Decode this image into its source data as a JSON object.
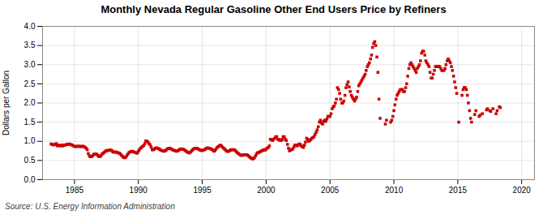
{
  "chart_data": {
    "type": "scatter",
    "title": "Monthly Nevada Regular Gasoline Other End Users Price by Refiners",
    "ylabel": "Dollars per Gallon",
    "caption": "Source: U.S. Energy Information Administration",
    "color": "#cc0000",
    "marker": "square",
    "grid": true,
    "xlim": [
      1982.5,
      2021
    ],
    "ylim": [
      0.0,
      4.0
    ],
    "xticks": [
      1985,
      1990,
      1995,
      2000,
      2005,
      2010,
      2015,
      2020
    ],
    "yticks": [
      {
        "value": 0,
        "label": "0.0"
      },
      0.5,
      {
        "value": 1,
        "label": "1.0"
      },
      1.5,
      {
        "value": 2,
        "label": "2.0"
      },
      2.5,
      {
        "value": 3,
        "label": "3.0"
      },
      3.5,
      {
        "value": 4,
        "label": "4.0"
      }
    ],
    "x": [
      1983.17,
      1983.25,
      1983.33,
      1983.42,
      1983.5,
      1983.58,
      1983.67,
      1983.75,
      1983.83,
      1983.92,
      1984.0,
      1984.08,
      1984.17,
      1984.25,
      1984.33,
      1984.42,
      1984.5,
      1984.58,
      1984.67,
      1984.75,
      1984.83,
      1984.92,
      1985.0,
      1985.08,
      1985.17,
      1985.25,
      1985.33,
      1985.42,
      1985.5,
      1985.58,
      1985.67,
      1985.75,
      1985.83,
      1985.92,
      1986.0,
      1986.08,
      1986.17,
      1986.25,
      1986.33,
      1986.42,
      1986.5,
      1986.58,
      1986.67,
      1986.75,
      1986.83,
      1986.92,
      1987.0,
      1987.08,
      1987.17,
      1987.25,
      1987.33,
      1987.42,
      1987.5,
      1987.58,
      1987.67,
      1987.75,
      1987.83,
      1987.92,
      1988.0,
      1988.08,
      1988.17,
      1988.25,
      1988.33,
      1988.42,
      1988.5,
      1988.58,
      1988.67,
      1988.75,
      1988.83,
      1988.92,
      1989.0,
      1989.08,
      1989.17,
      1989.25,
      1989.33,
      1989.42,
      1989.5,
      1989.58,
      1989.67,
      1989.75,
      1989.83,
      1989.92,
      1990.0,
      1990.08,
      1990.17,
      1990.25,
      1990.33,
      1990.42,
      1990.5,
      1990.58,
      1990.67,
      1990.75,
      1990.83,
      1990.92,
      1991.0,
      1991.08,
      1991.17,
      1991.25,
      1991.33,
      1991.42,
      1991.5,
      1991.58,
      1991.67,
      1991.75,
      1991.83,
      1991.92,
      1992.0,
      1992.08,
      1992.17,
      1992.25,
      1992.33,
      1992.42,
      1992.5,
      1992.58,
      1992.67,
      1992.75,
      1992.83,
      1992.92,
      1993.0,
      1993.08,
      1993.17,
      1993.25,
      1993.33,
      1993.42,
      1993.5,
      1993.58,
      1993.67,
      1993.75,
      1993.83,
      1993.92,
      1994.0,
      1994.08,
      1994.17,
      1994.25,
      1994.33,
      1994.42,
      1994.5,
      1994.58,
      1994.67,
      1994.75,
      1994.83,
      1994.92,
      1995.0,
      1995.08,
      1995.17,
      1995.25,
      1995.33,
      1995.42,
      1995.5,
      1995.58,
      1995.67,
      1995.75,
      1995.83,
      1995.92,
      1996.0,
      1996.08,
      1996.17,
      1996.25,
      1996.33,
      1996.42,
      1996.5,
      1996.58,
      1996.67,
      1996.75,
      1996.83,
      1996.92,
      1997.0,
      1997.08,
      1997.17,
      1997.25,
      1997.33,
      1997.42,
      1997.5,
      1997.58,
      1997.67,
      1997.75,
      1997.83,
      1997.92,
      1998.0,
      1998.08,
      1998.17,
      1998.25,
      1998.33,
      1998.42,
      1998.5,
      1998.58,
      1998.67,
      1998.75,
      1998.83,
      1998.92,
      1999.0,
      1999.08,
      1999.17,
      1999.25,
      1999.33,
      1999.42,
      1999.5,
      1999.58,
      1999.67,
      1999.75,
      1999.83,
      1999.92,
      2000.0,
      2000.08,
      2000.17,
      2000.25,
      2000.33,
      2000.42,
      2000.5,
      2000.58,
      2000.67,
      2000.75,
      2000.83,
      2000.92,
      2001.0,
      2001.08,
      2001.17,
      2001.25,
      2001.33,
      2001.42,
      2001.5,
      2001.58,
      2001.67,
      2001.75,
      2001.83,
      2001.92,
      2002.0,
      2002.08,
      2002.17,
      2002.25,
      2002.33,
      2002.42,
      2002.5,
      2002.58,
      2002.67,
      2002.75,
      2002.83,
      2002.92,
      2003.0,
      2003.08,
      2003.17,
      2003.25,
      2003.33,
      2003.42,
      2003.5,
      2003.58,
      2003.67,
      2003.75,
      2003.83,
      2003.92,
      2004.0,
      2004.08,
      2004.17,
      2004.25,
      2004.33,
      2004.42,
      2004.5,
      2004.58,
      2004.67,
      2004.75,
      2004.83,
      2004.92,
      2005.0,
      2005.08,
      2005.17,
      2005.25,
      2005.33,
      2005.42,
      2005.5,
      2005.58,
      2005.67,
      2005.75,
      2005.83,
      2005.92,
      2006.0,
      2006.08,
      2006.17,
      2006.25,
      2006.33,
      2006.42,
      2006.5,
      2006.58,
      2006.67,
      2006.75,
      2006.83,
      2006.92,
      2007.0,
      2007.08,
      2007.17,
      2007.25,
      2007.33,
      2007.42,
      2007.5,
      2007.58,
      2007.67,
      2007.75,
      2007.83,
      2007.92,
      2008.0,
      2008.08,
      2008.17,
      2008.25,
      2008.33,
      2008.42,
      2008.5,
      2008.58,
      2008.67,
      2008.75,
      2008.83,
      2008.92,
      2009.33,
      2009.42,
      2009.75,
      2009.83,
      2009.92,
      2010.0,
      2010.08,
      2010.17,
      2010.25,
      2010.33,
      2010.42,
      2010.5,
      2010.58,
      2010.67,
      2010.75,
      2010.83,
      2010.92,
      2011.0,
      2011.08,
      2011.17,
      2011.25,
      2011.33,
      2011.42,
      2011.5,
      2011.58,
      2011.67,
      2011.75,
      2011.83,
      2011.92,
      2012.0,
      2012.08,
      2012.17,
      2012.25,
      2012.33,
      2012.42,
      2012.5,
      2012.58,
      2012.67,
      2012.75,
      2012.83,
      2012.92,
      2013.0,
      2013.08,
      2013.17,
      2013.25,
      2013.33,
      2013.42,
      2013.5,
      2013.58,
      2013.67,
      2013.75,
      2013.83,
      2013.92,
      2014.0,
      2014.08,
      2014.17,
      2014.25,
      2014.33,
      2014.42,
      2014.5,
      2014.58,
      2014.67,
      2014.75,
      2014.83,
      2014.92,
      2015.08,
      2015.33,
      2015.42,
      2015.5,
      2015.58,
      2015.67,
      2015.75,
      2015.83,
      2015.92,
      2016.0,
      2016.08,
      2016.33,
      2016.42,
      2016.67,
      2016.75,
      2016.92,
      2017.25,
      2017.33,
      2017.5,
      2017.58,
      2017.75,
      2018.0,
      2018.08,
      2018.25,
      2018.33
    ],
    "values": [
      0.93,
      0.92,
      0.91,
      0.91,
      0.92,
      0.94,
      0.88,
      0.9,
      0.89,
      0.88,
      0.9,
      0.88,
      0.9,
      0.9,
      0.91,
      0.92,
      0.92,
      0.93,
      0.92,
      0.91,
      0.9,
      0.88,
      0.87,
      0.86,
      0.87,
      0.87,
      0.87,
      0.87,
      0.86,
      0.87,
      0.87,
      0.86,
      0.84,
      0.82,
      0.78,
      0.68,
      0.62,
      0.6,
      0.6,
      0.62,
      0.66,
      0.66,
      0.67,
      0.66,
      0.63,
      0.6,
      0.6,
      0.63,
      0.67,
      0.69,
      0.71,
      0.74,
      0.76,
      0.76,
      0.76,
      0.77,
      0.77,
      0.76,
      0.72,
      0.72,
      0.72,
      0.72,
      0.71,
      0.7,
      0.69,
      0.67,
      0.64,
      0.61,
      0.58,
      0.57,
      0.58,
      0.62,
      0.66,
      0.7,
      0.72,
      0.73,
      0.74,
      0.73,
      0.72,
      0.71,
      0.7,
      0.69,
      0.74,
      0.78,
      0.82,
      0.84,
      0.87,
      0.89,
      0.94,
      1.01,
      1.0,
      0.98,
      0.94,
      0.91,
      0.85,
      0.78,
      0.78,
      0.8,
      0.82,
      0.83,
      0.82,
      0.81,
      0.79,
      0.77,
      0.76,
      0.75,
      0.74,
      0.75,
      0.77,
      0.8,
      0.81,
      0.82,
      0.81,
      0.8,
      0.78,
      0.77,
      0.76,
      0.75,
      0.74,
      0.75,
      0.77,
      0.79,
      0.8,
      0.8,
      0.79,
      0.78,
      0.76,
      0.74,
      0.72,
      0.7,
      0.7,
      0.72,
      0.75,
      0.78,
      0.8,
      0.82,
      0.82,
      0.82,
      0.8,
      0.79,
      0.77,
      0.76,
      0.76,
      0.77,
      0.78,
      0.8,
      0.82,
      0.83,
      0.82,
      0.82,
      0.8,
      0.79,
      0.77,
      0.74,
      0.76,
      0.8,
      0.84,
      0.86,
      0.88,
      0.9,
      0.88,
      0.85,
      0.82,
      0.8,
      0.77,
      0.74,
      0.74,
      0.74,
      0.76,
      0.78,
      0.78,
      0.78,
      0.78,
      0.76,
      0.73,
      0.7,
      0.68,
      0.66,
      0.64,
      0.63,
      0.64,
      0.65,
      0.65,
      0.65,
      0.65,
      0.63,
      0.6,
      0.58,
      0.56,
      0.54,
      0.55,
      0.57,
      0.62,
      0.67,
      0.7,
      0.71,
      0.72,
      0.74,
      0.75,
      0.77,
      0.78,
      0.77,
      0.8,
      0.82,
      0.84,
      0.88,
      1.05,
      1.05,
      1.02,
      1.05,
      1.08,
      1.12,
      1.12,
      1.05,
      1.05,
      1.02,
      1.02,
      1.05,
      1.12,
      1.12,
      1.05,
      1.02,
      0.92,
      0.82,
      0.75,
      0.78,
      0.78,
      0.8,
      0.85,
      0.9,
      0.9,
      0.88,
      0.9,
      0.93,
      0.92,
      0.88,
      0.86,
      0.84,
      0.9,
      0.98,
      1.08,
      1.05,
      1.0,
      1.02,
      1.05,
      1.08,
      1.1,
      1.12,
      1.18,
      1.24,
      1.3,
      1.38,
      1.5,
      1.55,
      1.48,
      1.45,
      1.52,
      1.55,
      1.52,
      1.58,
      1.65,
      1.65,
      1.65,
      1.72,
      1.85,
      1.9,
      1.92,
      2.0,
      2.1,
      2.4,
      2.35,
      2.25,
      2.1,
      2.0,
      2.0,
      2.05,
      2.2,
      2.4,
      2.48,
      2.55,
      2.42,
      2.3,
      2.2,
      2.15,
      2.1,
      2.05,
      2.1,
      2.15,
      2.3,
      2.45,
      2.5,
      2.55,
      2.6,
      2.65,
      2.7,
      2.75,
      2.85,
      2.95,
      3.0,
      3.05,
      3.15,
      3.25,
      3.45,
      3.55,
      3.6,
      3.5,
      3.2,
      2.8,
      2.1,
      1.6,
      1.45,
      1.55,
      1.5,
      1.55,
      1.65,
      1.8,
      1.95,
      2.1,
      2.2,
      2.25,
      2.3,
      2.35,
      2.35,
      2.35,
      2.3,
      2.3,
      2.4,
      2.5,
      2.7,
      2.9,
      3.0,
      3.05,
      3.0,
      2.95,
      2.9,
      2.85,
      2.8,
      2.9,
      2.95,
      3.0,
      3.1,
      3.3,
      3.35,
      3.35,
      3.25,
      3.1,
      3.05,
      3.0,
      2.95,
      2.8,
      2.65,
      2.65,
      2.75,
      2.85,
      2.95,
      2.95,
      2.95,
      2.95,
      2.95,
      2.9,
      2.85,
      2.85,
      2.85,
      2.9,
      3.0,
      3.1,
      3.15,
      3.1,
      3.05,
      2.95,
      2.85,
      2.7,
      2.55,
      2.4,
      2.25,
      1.5,
      2.2,
      2.35,
      2.4,
      2.4,
      2.35,
      2.2,
      2.0,
      1.8,
      1.6,
      1.5,
      1.7,
      1.8,
      1.65,
      1.68,
      1.72,
      1.82,
      1.85,
      1.8,
      1.78,
      1.85,
      1.72,
      1.8,
      1.9,
      1.88
    ]
  }
}
